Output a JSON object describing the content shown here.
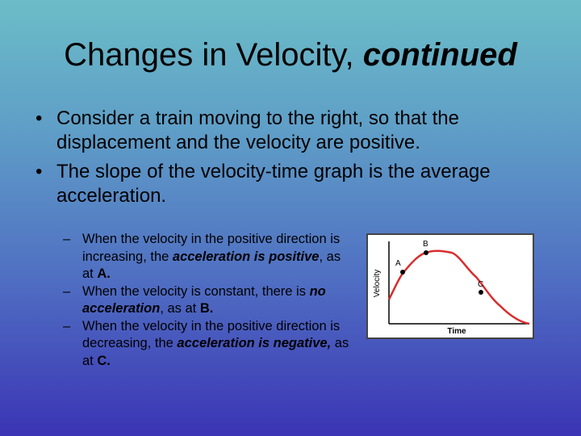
{
  "slide": {
    "title_main": "Changes in Velocity, ",
    "title_emph": "continued",
    "bullets": [
      {
        "text": "Consider a train moving to the right, so that the displacement and the velocity are positive."
      },
      {
        "text": "The slope of the velocity-time graph is the average acceleration."
      }
    ],
    "subbullets": [
      {
        "pre": "When the velocity in the positive direction is increasing, the ",
        "emph": "acceleration is positive",
        "mid": ", as at ",
        "point": "A."
      },
      {
        "pre": "When the velocity is constant, there is ",
        "emph": "no acceleration",
        "mid": ", as at ",
        "point": "B."
      },
      {
        "pre": "When the velocity in the positive direction is decreasing, the ",
        "emph": "acceleration is negative,",
        "mid": " as at ",
        "point": "C."
      }
    ]
  },
  "chart_data": {
    "type": "line",
    "xlabel": "Time",
    "ylabel": "Velocity",
    "curve_color": "#d92d2d",
    "points": [
      {
        "label": "A"
      },
      {
        "label": "B"
      },
      {
        "label": "C"
      }
    ]
  }
}
